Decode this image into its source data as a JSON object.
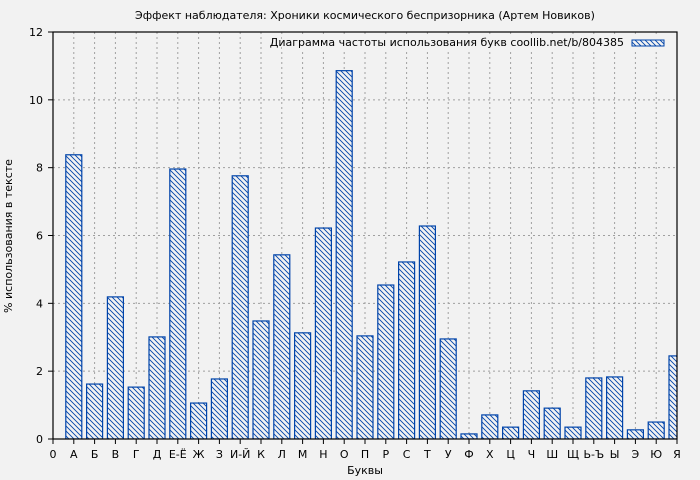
{
  "chart_data": {
    "type": "bar",
    "title": "Эффект наблюдателя: Хроники космического беспризорника (Артем Новиков)",
    "xlabel": "Буквы",
    "ylabel": "% использования в тексте",
    "ylim": [
      0,
      12
    ],
    "yticks": [
      0,
      2,
      4,
      6,
      8,
      10,
      12
    ],
    "xticks": [
      "0",
      "А",
      "Б",
      "В",
      "Г",
      "Д",
      "Е-Ё",
      "Ж",
      "З",
      "И-Й",
      "К",
      "Л",
      "М",
      "Н",
      "О",
      "П",
      "Р",
      "С",
      "Т",
      "У",
      "Ф",
      "Х",
      "Ц",
      "Ч",
      "Ш",
      "Щ",
      "Ь-Ъ",
      "Ы",
      "Э",
      "Ю",
      "Я"
    ],
    "grid": true,
    "legend": {
      "position": "top-right",
      "entries": [
        "Диаграмма частоты использования букв coollib.net/b/804385"
      ]
    },
    "categories": [
      "А",
      "Б",
      "В",
      "Г",
      "Д",
      "Е-Ё",
      "Ж",
      "З",
      "И-Й",
      "К",
      "Л",
      "М",
      "Н",
      "О",
      "П",
      "Р",
      "С",
      "Т",
      "У",
      "Ф",
      "Х",
      "Ц",
      "Ч",
      "Ш",
      "Щ",
      "Ь-Ъ",
      "Ы",
      "Э",
      "Ю",
      "Я"
    ],
    "values": [
      8.38,
      1.62,
      4.19,
      1.53,
      3.01,
      7.96,
      1.06,
      1.77,
      7.76,
      3.48,
      5.43,
      3.13,
      6.22,
      10.86,
      3.04,
      4.54,
      5.22,
      6.28,
      2.95,
      0.15,
      0.71,
      0.35,
      1.42,
      0.91,
      0.35,
      1.8,
      1.83,
      0.27,
      0.5,
      2.45
    ],
    "colors": {
      "bar": "#0044aa",
      "background": "#f2f2f2",
      "grid": "#a0a0a0"
    }
  }
}
